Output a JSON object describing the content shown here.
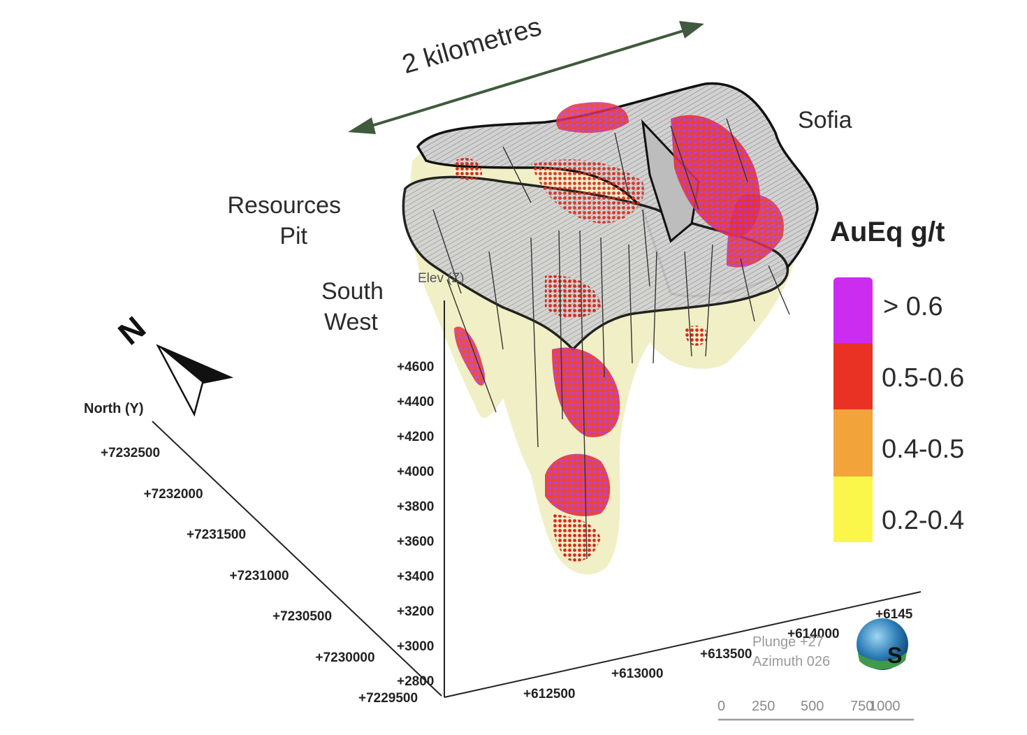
{
  "scale_arrow": {
    "label": "2 kilometres"
  },
  "regions": {
    "sofia": "Sofia",
    "resources_pit_line1": "Resources",
    "resources_pit_line2": "Pit",
    "south_west_line1": "South",
    "south_west_line2": "West"
  },
  "legend": {
    "title": "AuEq g/t",
    "entries": [
      {
        "label": "> 0.6",
        "color": "#cc2cf0"
      },
      {
        "label": "0.5-0.6",
        "color": "#ea3224"
      },
      {
        "label": "0.4-0.5",
        "color": "#f2a33a"
      },
      {
        "label": "0.2-0.4",
        "color": "#fbf74a"
      }
    ]
  },
  "axes": {
    "elevation_label": "Elev (Z)",
    "elevation_ticks": [
      "+4600",
      "+4400",
      "+4200",
      "+4000",
      "+3800",
      "+3600",
      "+3400",
      "+3200",
      "+3000",
      "+2800"
    ],
    "north_label": "North (Y)",
    "north_ticks": [
      "+7232500",
      "+7232000",
      "+7231500",
      "+7231000",
      "+7230500",
      "+7230000",
      "+7229500"
    ],
    "east_ticks": [
      "+612500",
      "+613000",
      "+613500",
      "+614000",
      "+6145"
    ]
  },
  "view": {
    "plunge": "Plunge +27",
    "azimuth": "Azimuth 026",
    "compass_letter": "N",
    "globe_letter": "S"
  },
  "scale_bar": {
    "ticks": [
      "0",
      "250",
      "500",
      "750",
      "1000"
    ]
  },
  "colors": {
    "arrow": "#3f5a3c",
    "halo": "#f1efc6",
    "pit_shell": "#c9c9c9",
    "outline": "#111111"
  }
}
